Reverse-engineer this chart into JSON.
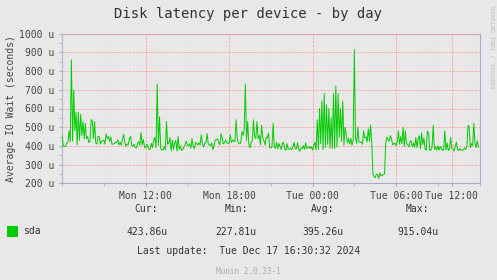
{
  "title": "Disk latency per device - by day",
  "ylabel": "Average IO Wait (seconds)",
  "background_color": "#e8e8e8",
  "plot_bg_color": "#e8e8e8",
  "grid_color_major": "#ff9999",
  "grid_color_minor": "#ffcccc",
  "line_color": "#00cc00",
  "ytick_labels": [
    "200 u",
    "300 u",
    "400 u",
    "500 u",
    "600 u",
    "700 u",
    "800 u",
    "900 u",
    "1000 u"
  ],
  "ytick_values": [
    200,
    300,
    400,
    500,
    600,
    700,
    800,
    900,
    1000
  ],
  "ylim": [
    200,
    1000
  ],
  "xtick_labels": [
    "Mon 12:00",
    "Mon 18:00",
    "Tue 00:00",
    "Tue 06:00",
    "Tue 12:00"
  ],
  "xtick_positions": [
    72,
    144,
    216,
    288,
    336
  ],
  "xlim": [
    0,
    360
  ],
  "legend_label": "sda",
  "legend_color": "#00cc00",
  "cur_label": "Cur:",
  "cur_val": "423.86u",
  "min_label": "Min:",
  "min_val": "227.81u",
  "avg_label": "Avg:",
  "avg_val": "395.26u",
  "max_label": "Max:",
  "max_val": "915.04u",
  "last_update_label": "Last update:",
  "last_update_val": "Tue Dec 17 16:30:32 2024",
  "munin_version": "Munin 2.0.33-1",
  "watermark": "RRDTOOL / TOBI OETIKER",
  "title_fontsize": 10,
  "axis_fontsize": 7,
  "label_fontsize": 7,
  "small_fontsize": 5.5,
  "spine_color": "#aaaacc"
}
